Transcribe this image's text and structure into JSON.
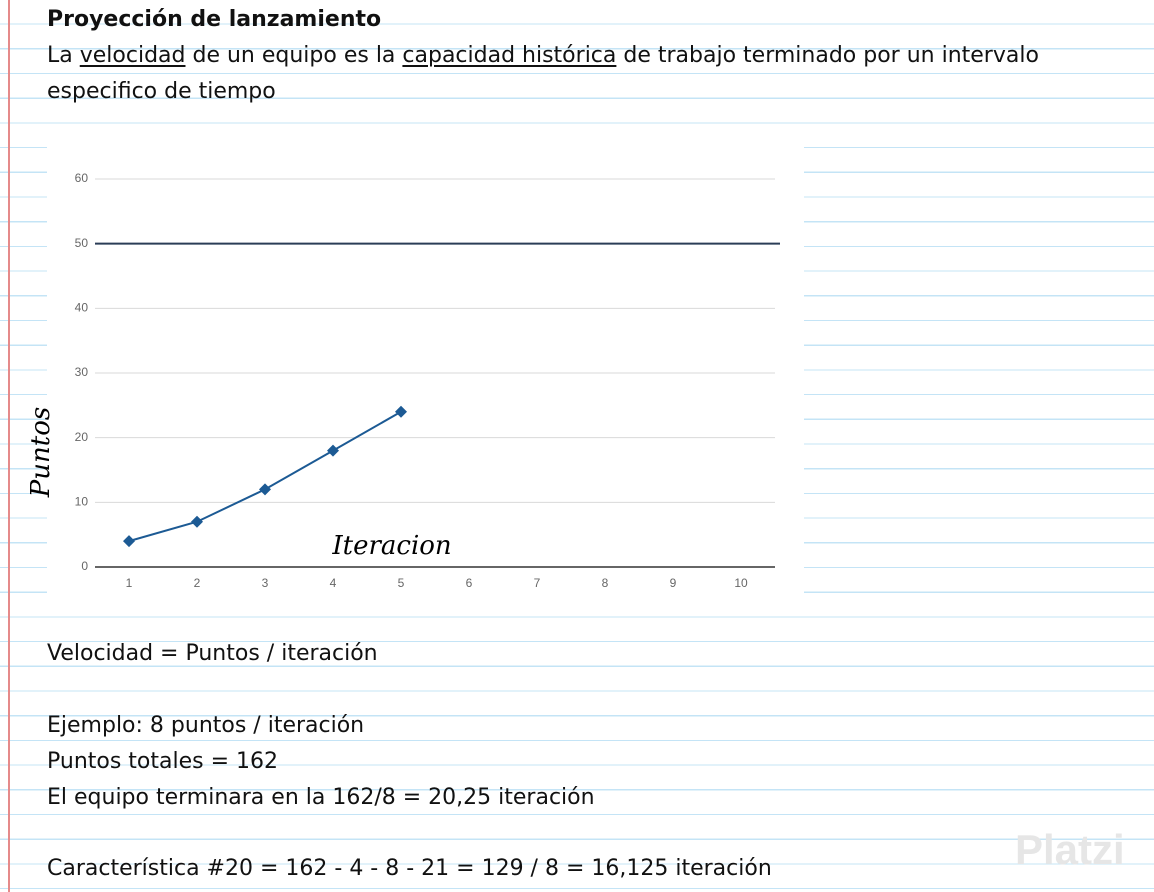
{
  "title": "Proyección de lanzamiento",
  "intro": [
    "La ",
    "velocidad",
    " de un equipo es la ",
    "capacidad histórica",
    " de trabajo terminado por un intervalo",
    "especifico de tiempo"
  ],
  "chart_data": {
    "type": "line",
    "categories": [
      "1",
      "2",
      "3",
      "4",
      "5",
      "6",
      "7",
      "8",
      "9",
      "10"
    ],
    "values": [
      4,
      7,
      12,
      18,
      24,
      null,
      null,
      null,
      null,
      null
    ],
    "color": "#1c5a94",
    "target": 50,
    "target_color": "#2b3d57",
    "ylim": [
      0,
      60
    ],
    "yticks": [
      0,
      10,
      20,
      30,
      40,
      50,
      60
    ],
    "grid": true,
    "y_label": "Puntos",
    "x_label": "Iteracion"
  },
  "lines": [
    "Velocidad = Puntos / iteración",
    "Ejemplo: 8 puntos / iteración",
    "Puntos totales = 162",
    "El equipo terminara en la 162/8 = 20,25 iteración",
    "Característica #20 = 162 - 4 - 8 - 21 = 129 / 8 = 16,125 iteración"
  ],
  "watermark": "Platzi"
}
